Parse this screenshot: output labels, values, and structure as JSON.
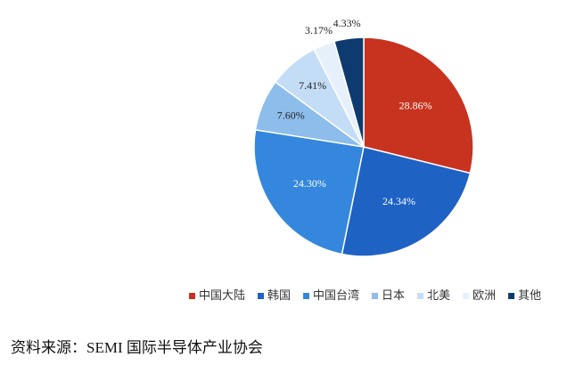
{
  "chart_data": {
    "type": "pie",
    "categories": [
      "中国大陆",
      "韩国",
      "中国台湾",
      "日本",
      "北美",
      "欧洲",
      "其他"
    ],
    "values": [
      28.86,
      24.34,
      24.3,
      7.6,
      7.41,
      3.17,
      4.33
    ],
    "value_labels": [
      "28.86%",
      "24.34%",
      "24.30%",
      "7.60%",
      "7.41%",
      "3.17%",
      "4.33%"
    ],
    "colors": [
      "#c8331f",
      "#1e62c4",
      "#3487dc",
      "#8dbdeb",
      "#c4ddf6",
      "#e6f0fa",
      "#0e3b6f"
    ],
    "legend": "bottom",
    "source": "资料来源：SEMI 国际半导体产业协会"
  }
}
